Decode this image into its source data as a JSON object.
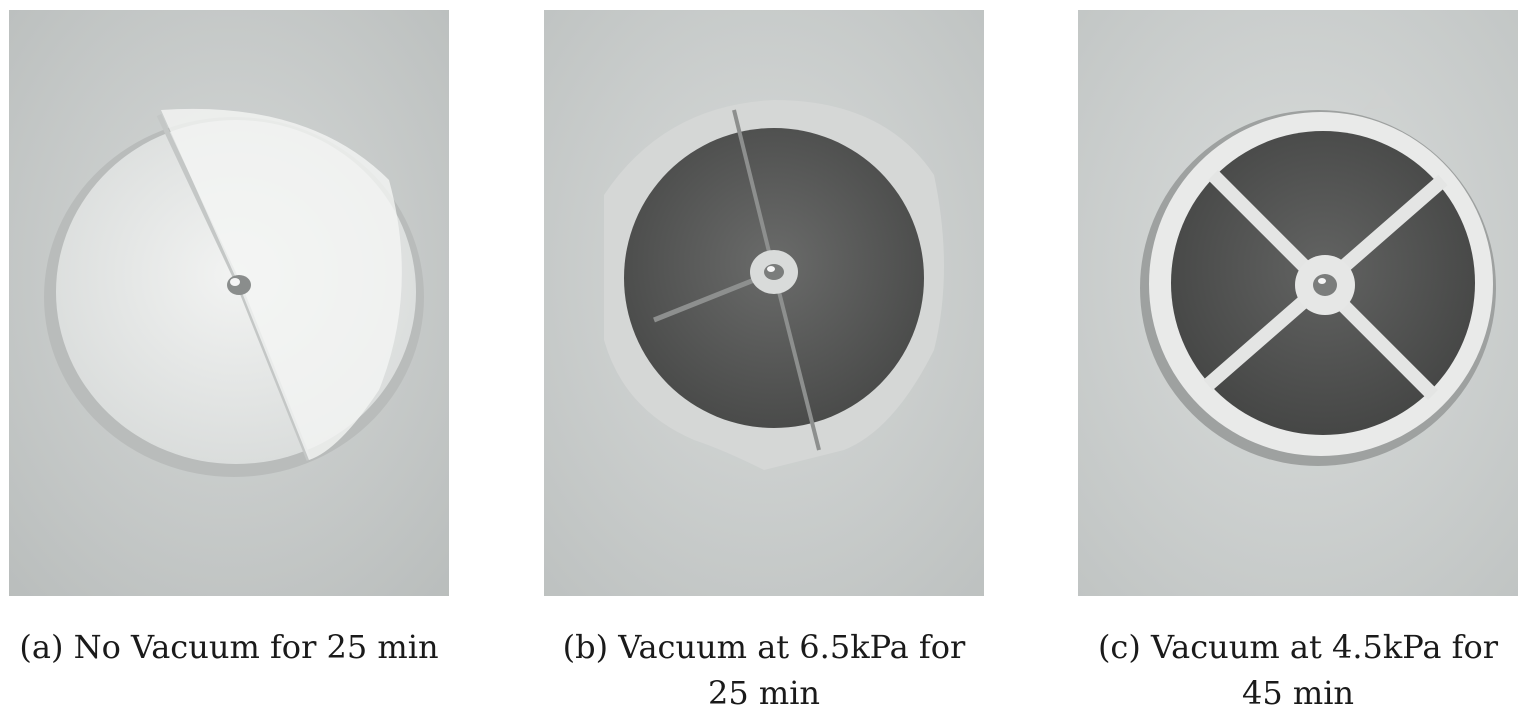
{
  "panels": [
    {
      "caption_line1": "(a) No Vacuum for 25 min",
      "caption_line2": "",
      "filter_tone": "#eceeed",
      "filter_edge": "#d9dcdb"
    },
    {
      "caption_line1": "(b) Vacuum at 6.5kPa for",
      "caption_line2": "25 min",
      "filter_tone": "#5c5d5c",
      "filter_edge": "#c9cbca"
    },
    {
      "caption_line1": "(c) Vacuum at 4.5kPa for",
      "caption_line2": "45 min",
      "filter_tone": "#535554",
      "filter_edge": "#e8e9e8"
    }
  ],
  "colors": {
    "background_wall": "#c7cbca",
    "caption_text": "#1a1a1a"
  }
}
